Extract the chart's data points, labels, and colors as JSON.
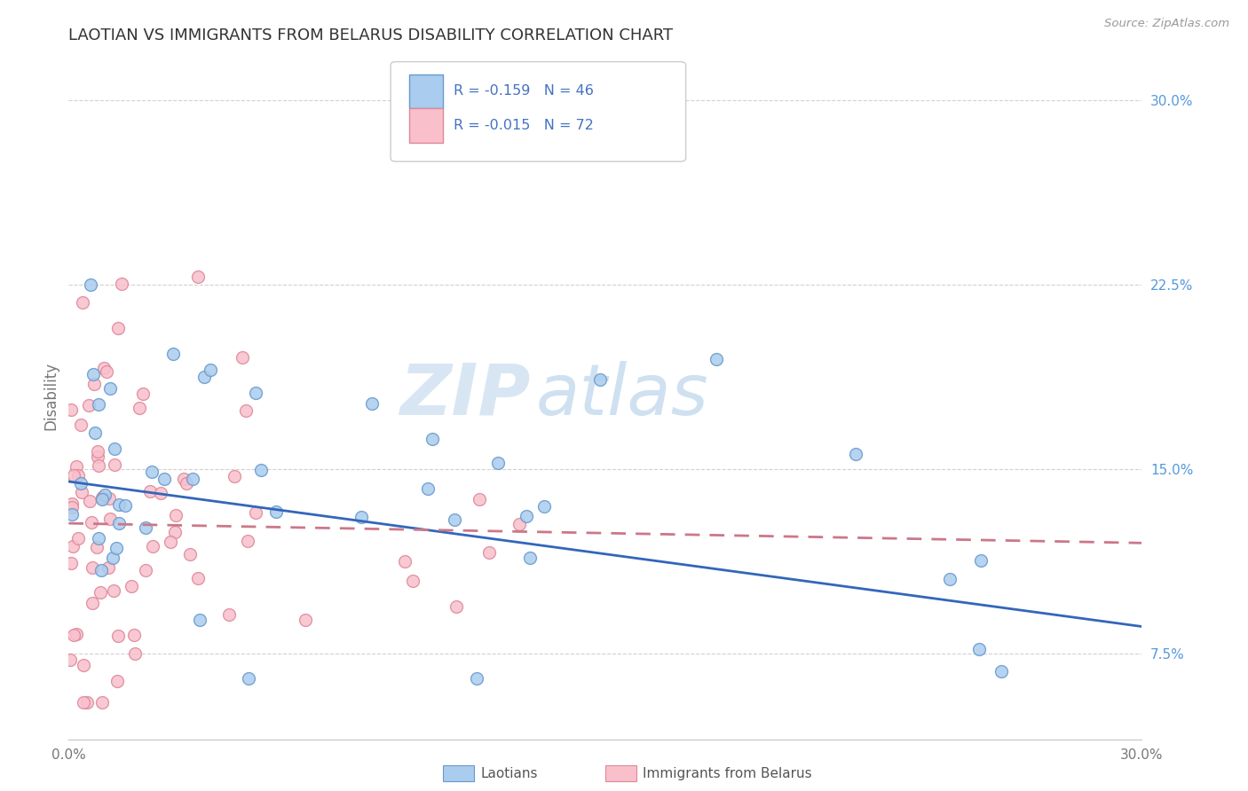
{
  "title": "LAOTIAN VS IMMIGRANTS FROM BELARUS DISABILITY CORRELATION CHART",
  "source": "Source: ZipAtlas.com",
  "ylabel": "Disability",
  "right_yticks": [
    "30.0%",
    "22.5%",
    "15.0%",
    "7.5%"
  ],
  "right_ytick_vals": [
    0.3,
    0.225,
    0.15,
    0.075
  ],
  "xmin": 0.0,
  "xmax": 0.3,
  "ymin": 0.04,
  "ymax": 0.32,
  "series": [
    {
      "name": "Laotians",
      "color": "#AACCEE",
      "edge_color": "#6699CC",
      "R": -0.159,
      "N": 46,
      "line_color": "#3366BB",
      "line_style": "solid"
    },
    {
      "name": "Immigrants from Belarus",
      "color": "#F9C0CC",
      "edge_color": "#DD8899",
      "R": -0.015,
      "N": 72,
      "line_color": "#CC7788",
      "line_style": "dashed"
    }
  ],
  "watermark_zip": "ZIP",
  "watermark_atlas": "atlas",
  "legend_labels": [
    "R = -0.159   N = 46",
    "R = -0.015   N = 72"
  ],
  "legend_text_color": "#4472C4",
  "background_color": "#FFFFFF",
  "grid_color": "#CCCCCC"
}
